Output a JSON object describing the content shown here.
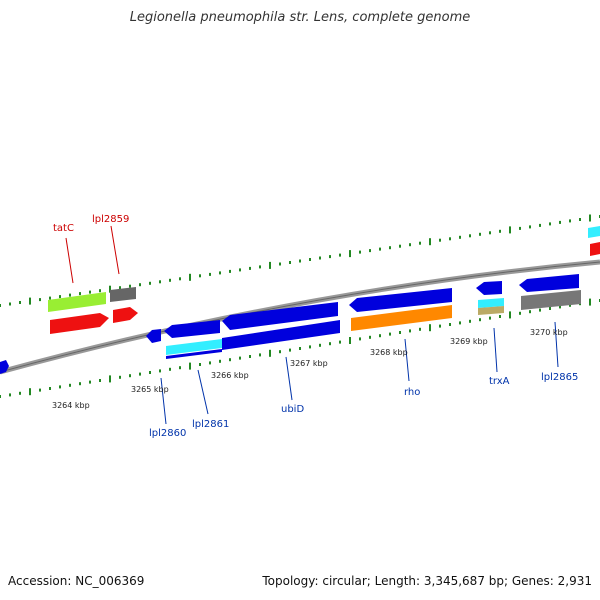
{
  "title": "Legionella pneumophila str. Lens, complete genome",
  "footer": {
    "accession": "Accession: NC_006369",
    "summary": "Topology: circular; Length: 3,345,687 bp; Genes: 2,931"
  },
  "colors": {
    "forward_gene": "#0000dd",
    "highlight_label": "#cc0000",
    "gene_label": "#0033aa",
    "backbone": "#888888",
    "tick": "#228822"
  },
  "scale_labels": [
    "3264 kbp",
    "3265 kbp",
    "3266 kbp",
    "3267 kbp",
    "3268 kbp",
    "3269 kbp",
    "3270 kbp"
  ],
  "gene_labels": {
    "top": [
      "tatC",
      "lpl2859"
    ],
    "bottom": [
      "lpl2860",
      "lpl2861",
      "ubiD",
      "rho",
      "trxA",
      "lpl2865"
    ]
  }
}
